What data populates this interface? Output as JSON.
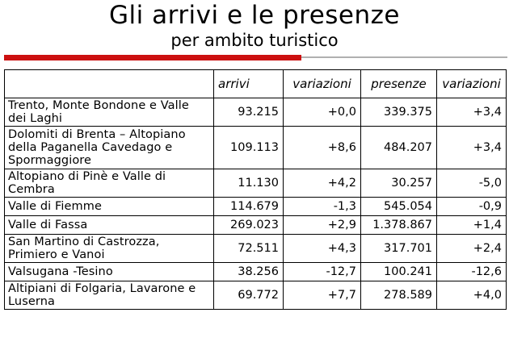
{
  "title": "Gli arrivi e le presenze",
  "subtitle": "per ambito turistico",
  "colors": {
    "accent_bar": "#cc1010",
    "rule_line": "#b0b0b0"
  },
  "table": {
    "headers": [
      "",
      "arrivi",
      "variazioni",
      "presenze",
      "variazioni"
    ],
    "rows": [
      {
        "name": "Trento, Monte Bondone e Valle dei Laghi",
        "arrivi": "93.215",
        "var_arrivi": "+0,0",
        "presenze": "339.375",
        "var_presenze": "+3,4"
      },
      {
        "name": "Dolomiti di Brenta – Altopiano della Paganella Cavedago e Spormaggiore",
        "arrivi": "109.113",
        "var_arrivi": "+8,6",
        "presenze": "484.207",
        "var_presenze": "+3,4"
      },
      {
        "name": "Altopiano di Pinè e Valle di Cembra",
        "arrivi": "11.130",
        "var_arrivi": "+4,2",
        "presenze": "30.257",
        "var_presenze": "-5,0"
      },
      {
        "name": "Valle di Fiemme",
        "arrivi": "114.679",
        "var_arrivi": "-1,3",
        "presenze": "545.054",
        "var_presenze": "-0,9"
      },
      {
        "name": "Valle di Fassa",
        "arrivi": "269.023",
        "var_arrivi": "+2,9",
        "presenze": "1.378.867",
        "var_presenze": "+1,4"
      },
      {
        "name": "San Martino di Castrozza, Primiero e Vanoi",
        "arrivi": "72.511",
        "var_arrivi": "+4,3",
        "presenze": "317.701",
        "var_presenze": "+2,4"
      },
      {
        "name": "Valsugana -Tesino",
        "arrivi": "38.256",
        "var_arrivi": "-12,7",
        "presenze": "100.241",
        "var_presenze": "-12,6"
      },
      {
        "name": "Altipiani di Folgaria, Lavarone e Luserna",
        "arrivi": "69.772",
        "var_arrivi": "+7,7",
        "presenze": "278.589",
        "var_presenze": "+4,0"
      }
    ]
  }
}
